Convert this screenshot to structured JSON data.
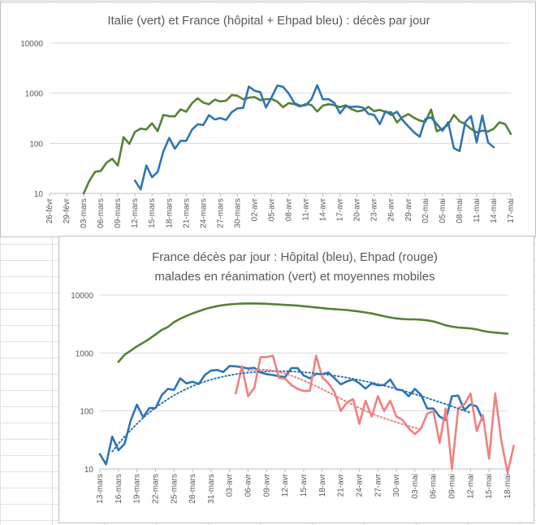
{
  "chart_data": [
    {
      "type": "line",
      "title": "Italie (vert) et France (hôpital + Ehpad bleu) : décès par jour",
      "y_scale": "log",
      "ylim": [
        10,
        10000
      ],
      "y_ticks": [
        "10",
        "100",
        "1000",
        "10000"
      ],
      "x_start_label": "26-févr",
      "x_end_label": "17-mai",
      "x_tick_labels": [
        "26-févr",
        "29-févr",
        "03-mars",
        "06-mars",
        "09-mars",
        "12-mars",
        "15-mars",
        "18-mars",
        "21-mars",
        "24-mars",
        "27-mars",
        "30-mars",
        "02-avr",
        "05-avr",
        "08-avr",
        "11-avr",
        "14-avr",
        "17-avr",
        "20-avr",
        "23-avr",
        "26-avr",
        "29-avr",
        "02-mai",
        "05-mai",
        "08-mai",
        "11-mai",
        "14-mai",
        "17-mai"
      ],
      "series": [
        {
          "color": "#548235",
          "start_index": 6,
          "values": [
            10,
            18,
            27,
            28,
            41,
            49,
            36,
            133,
            97,
            168,
            196,
            189,
            250,
            175,
            368,
            349,
            345,
            475,
            427,
            627,
            793,
            651,
            601,
            743,
            683,
            712,
            919,
            889,
            756,
            812,
            837,
            727,
            760,
            766,
            681,
            525,
            636,
            604,
            542,
            610,
            578,
            431,
            566,
            602,
            578,
            525,
            575,
            480,
            433,
            454,
            534,
            437,
            464,
            420,
            415,
            260,
            333,
            382,
            323,
            285,
            269,
            474,
            174,
            195,
            236,
            369,
            274,
            243,
            194,
            165,
            179,
            172,
            195,
            262,
            242,
            153
          ]
        },
        {
          "color": "#2e75b6",
          "start_index": 15,
          "values": [
            18,
            12,
            36,
            21,
            27,
            69,
            128,
            78,
            112,
            112,
            186,
            240,
            231,
            365,
            299,
            319,
            292,
            418,
            499,
            509,
            1355,
            1120,
            1053,
            518,
            833,
            1417,
            1341,
            987,
            635,
            561,
            574,
            762,
            1438,
            753,
            761,
            642,
            395,
            547,
            531,
            544,
            516,
            389,
            369,
            242,
            437,
            367,
            427,
            289,
            218,
            166,
            135,
            306,
            330,
            243,
            178,
            263,
            80,
            70,
            264,
            351,
            104,
            358,
            104,
            83
          ]
        }
      ]
    },
    {
      "type": "line",
      "title": "France décès par jour : Hôpital (bleu), Ehpad (rouge) malades en réanimation (vert) et moyennes mobiles",
      "title_lines": [
        "France décès par jour : Hôpital (bleu), Ehpad (rouge)",
        "malades en réanimation (vert) et moyennes mobiles"
      ],
      "y_scale": "log",
      "ylim": [
        10,
        10000
      ],
      "y_ticks": [
        "10",
        "100",
        "1000",
        "10000"
      ],
      "x_start_label": "13-mars",
      "x_end_label": "18-mai",
      "x_tick_labels": [
        "13-mars",
        "16-mars",
        "19-mars",
        "22-mars",
        "25-mars",
        "28-mars",
        "31-mars",
        "03-avr",
        "06-avr",
        "09-avr",
        "12-avr",
        "15-avr",
        "18-avr",
        "21-avr",
        "24-avr",
        "27-avr",
        "30-avr",
        "03-mai",
        "06-mai",
        "09-mai",
        "12-mai",
        "15-mai",
        "18-mai"
      ],
      "series": [
        {
          "color": "#548235",
          "start_index": 3,
          "values": [
            700,
            930,
            1100,
            1300,
            1500,
            1750,
            2080,
            2500,
            2800,
            3400,
            3900,
            4350,
            4800,
            5250,
            5700,
            6100,
            6450,
            6700,
            6900,
            7000,
            7100,
            7150,
            7150,
            7100,
            7050,
            6950,
            6850,
            6750,
            6650,
            6550,
            6400,
            6250,
            6100,
            5950,
            5800,
            5700,
            5600,
            5500,
            5350,
            5200,
            5000,
            4800,
            4550,
            4300,
            4100,
            3950,
            3850,
            3800,
            3800,
            3750,
            3650,
            3500,
            3250,
            3000,
            2850,
            2750,
            2700,
            2650,
            2550,
            2400,
            2300,
            2250,
            2200,
            2150
          ]
        },
        {
          "color": "#2e75b6",
          "start_index": 0,
          "values": [
            18,
            12,
            36,
            21,
            27,
            69,
            128,
            78,
            112,
            112,
            186,
            240,
            231,
            365,
            299,
            319,
            292,
            418,
            499,
            509,
            471,
            598,
            588,
            568,
            541,
            556,
            460,
            431,
            418,
            395,
            385,
            550,
            550,
            410,
            364,
            437,
            431,
            460,
            367,
            287,
            325,
            350,
            301,
            243,
            300,
            277,
            280,
            350,
            236,
            227,
            180,
            240,
            188,
            110,
            110,
            80,
            70,
            180,
            184,
            104,
            130,
            120,
            70
          ]
        },
        {
          "color": "#f08080",
          "start_index": 22,
          "values": [
            200,
            590,
            180,
            250,
            850,
            850,
            900,
            370,
            360,
            280,
            240,
            220,
            224,
            900,
            380,
            300,
            210,
            100,
            140,
            160,
            60,
            150,
            80,
            180,
            100,
            150,
            80,
            70,
            50,
            40,
            50,
            90,
            100,
            28,
            110,
            10,
            110,
            130,
            200,
            45,
            85,
            15,
            200,
            30,
            8,
            25
          ]
        },
        {
          "color": "#2e75b6",
          "dotted": true,
          "start_index": 2,
          "values": [
            20,
            27,
            36,
            47,
            60,
            76,
            94,
            114,
            136,
            160,
            186,
            212,
            240,
            268,
            296,
            322,
            347,
            371,
            393,
            413,
            431,
            446,
            459,
            469,
            477,
            482,
            485,
            485,
            483,
            479,
            473,
            465,
            456,
            445,
            433,
            420,
            406,
            391,
            375,
            359,
            342,
            325,
            308,
            291,
            274,
            257,
            241,
            225,
            210,
            195,
            181,
            167,
            154,
            142,
            131,
            120,
            110,
            101,
            93
          ]
        },
        {
          "color": "#f08080",
          "dotted": true,
          "start_index": 24,
          "values": [
            500,
            510,
            515,
            510,
            495,
            470,
            440,
            405,
            370,
            335,
            300,
            268,
            238,
            210,
            185,
            163,
            144,
            127,
            113,
            100,
            90,
            82,
            75,
            69,
            64,
            59,
            55,
            51,
            48
          ]
        }
      ]
    }
  ]
}
